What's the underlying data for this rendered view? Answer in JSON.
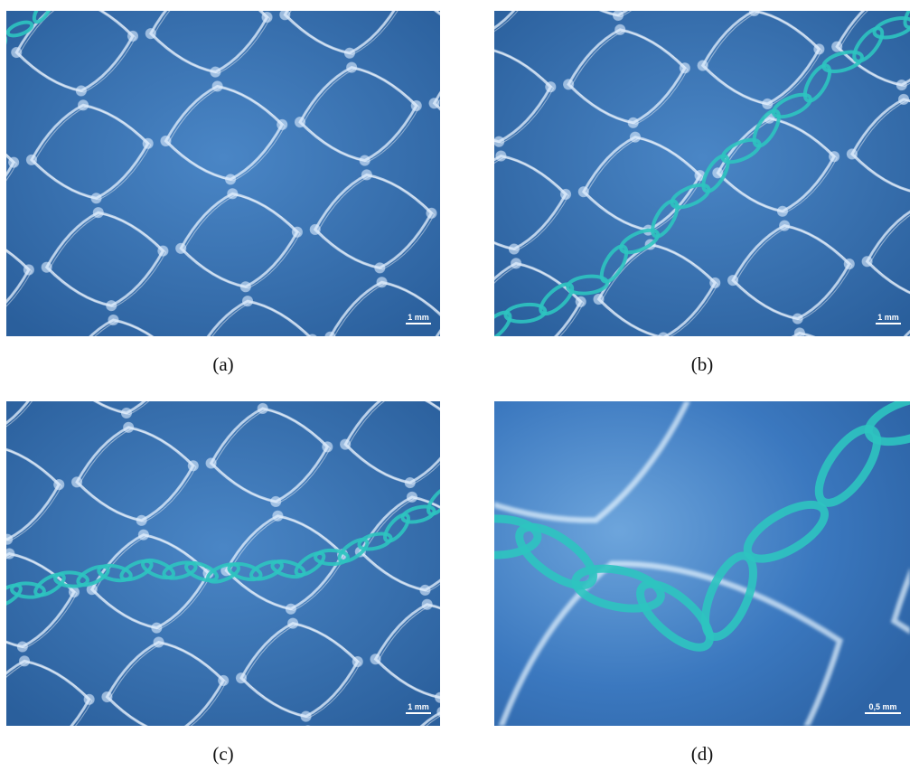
{
  "panels": [
    {
      "caption": "(a)",
      "scale_bar": "1 mm"
    },
    {
      "caption": "(b)",
      "scale_bar": "1 mm"
    },
    {
      "caption": "(c)",
      "scale_bar": "1 mm"
    },
    {
      "caption": "(d)",
      "scale_bar": "0,5 mm"
    }
  ]
}
